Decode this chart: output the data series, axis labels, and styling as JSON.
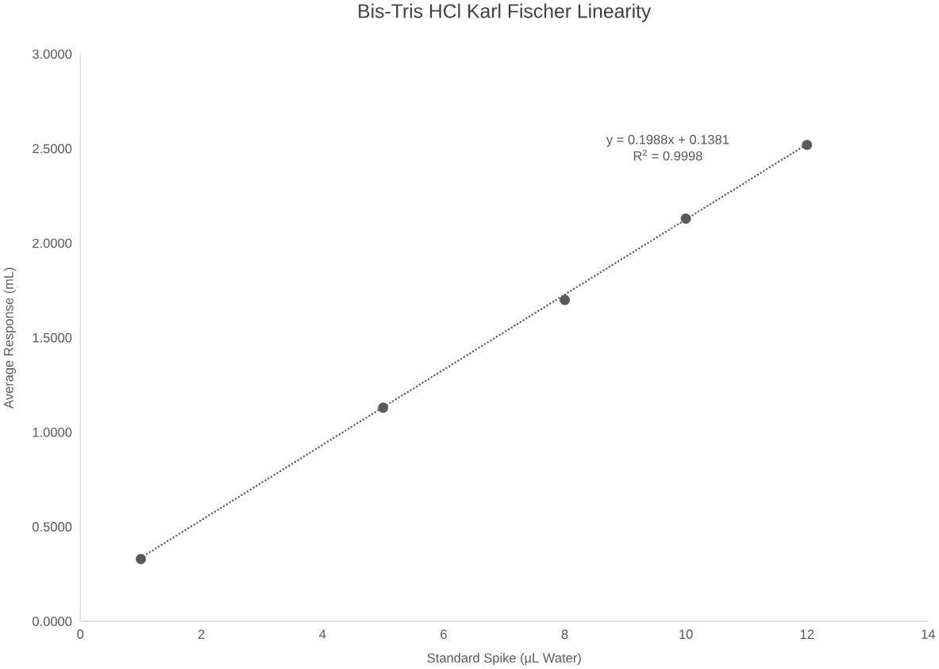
{
  "chart_data": {
    "type": "scatter",
    "title": "Bis-Tris HCl Karl Fischer Linearity",
    "xlabel": "Standard Spike (µL Water)",
    "ylabel": "Average Response (mL)",
    "series": [
      {
        "type": "scatter",
        "color": "#595959",
        "x": [
          1,
          5,
          8,
          10,
          12
        ],
        "values": [
          0.33,
          1.13,
          1.7,
          2.13,
          2.52
        ],
        "marker": "circle"
      },
      {
        "type": "line",
        "color": "#595959",
        "x": [
          1,
          12
        ],
        "values": [
          0.337,
          2.524
        ],
        "line_style": "dotted",
        "marker": "none"
      }
    ],
    "annotations": [
      "y = 0.1988x + 0.1381",
      "R$^{2}$ = 0.9998"
    ],
    "xlim": [
      0,
      14
    ],
    "xticks": [
      0,
      2,
      4,
      6,
      8,
      10,
      12,
      14
    ],
    "ylim": [
      0,
      3
    ],
    "yticks": [
      {
        "value": 0,
        "label": "0.0000"
      },
      {
        "value": 0.5,
        "label": "0.5000"
      },
      {
        "value": 1,
        "label": "1.0000"
      },
      {
        "value": 1.5,
        "label": "1.5000"
      },
      {
        "value": 2,
        "label": "2.0000"
      },
      {
        "value": 2.5,
        "label": "2.5000"
      },
      {
        "value": 3,
        "label": "3.0000"
      }
    ],
    "grid": false
  }
}
